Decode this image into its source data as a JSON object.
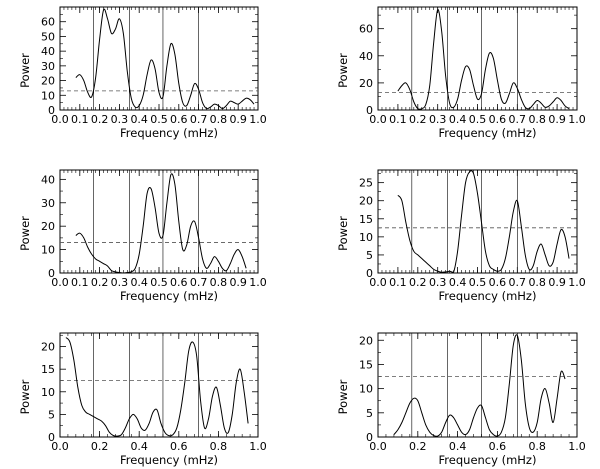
{
  "chart_data": [
    {
      "type": "line",
      "xlabel": "Frequency (mHz)",
      "ylabel": "Power",
      "xlim": [
        0.0,
        1.0
      ],
      "ylim": [
        0,
        70
      ],
      "xticks": [
        "0.0",
        "0.1",
        "0.2",
        "0.3",
        "0.4",
        "0.5",
        "0.6",
        "0.7",
        "0.8",
        "0.9",
        "1.0"
      ],
      "yticks": [
        "0",
        "10",
        "20",
        "30",
        "40",
        "50",
        "60"
      ],
      "ytick_values": [
        0,
        10,
        20,
        30,
        40,
        50,
        60
      ],
      "vertical_lines": [
        0.17,
        0.35,
        0.52,
        0.7
      ],
      "threshold": 13,
      "grid": false,
      "series": [
        {
          "x": [
            0.08,
            0.1,
            0.12,
            0.14,
            0.16,
            0.18,
            0.2,
            0.22,
            0.24,
            0.26,
            0.28,
            0.3,
            0.32,
            0.34,
            0.36,
            0.38,
            0.4,
            0.42,
            0.44,
            0.46,
            0.48,
            0.5,
            0.52,
            0.54,
            0.56,
            0.58,
            0.6,
            0.62,
            0.64,
            0.66,
            0.68,
            0.7,
            0.72,
            0.74,
            0.76,
            0.78,
            0.8,
            0.82,
            0.84,
            0.86,
            0.88,
            0.9,
            0.92,
            0.94,
            0.96,
            0.98
          ],
          "values": [
            22,
            24,
            20,
            12,
            9,
            22,
            48,
            68,
            62,
            52,
            55,
            62,
            52,
            26,
            8,
            2,
            3,
            10,
            24,
            34,
            28,
            12,
            9,
            30,
            45,
            38,
            18,
            5,
            3,
            10,
            18,
            14,
            5,
            1,
            2,
            4,
            3,
            1,
            3,
            6,
            5,
            4,
            6,
            8,
            7,
            4
          ]
        }
      ]
    },
    {
      "type": "line",
      "xlabel": "Frequency (mHz)",
      "ylabel": "Power",
      "xlim": [
        0.0,
        1.0
      ],
      "ylim": [
        0,
        76
      ],
      "xticks": [
        "0.0",
        "0.1",
        "0.2",
        "0.3",
        "0.4",
        "0.5",
        "0.6",
        "0.7",
        "0.8",
        "0.9",
        "1.0"
      ],
      "yticks": [
        "0",
        "20",
        "40",
        "60"
      ],
      "ytick_values": [
        0,
        20,
        40,
        60
      ],
      "vertical_lines": [
        0.17,
        0.35,
        0.52,
        0.7
      ],
      "threshold": 13,
      "grid": false,
      "series": [
        {
          "x": [
            0.1,
            0.12,
            0.14,
            0.16,
            0.18,
            0.2,
            0.22,
            0.24,
            0.26,
            0.28,
            0.3,
            0.32,
            0.34,
            0.36,
            0.38,
            0.4,
            0.42,
            0.44,
            0.46,
            0.48,
            0.5,
            0.52,
            0.54,
            0.56,
            0.58,
            0.6,
            0.62,
            0.64,
            0.66,
            0.68,
            0.7,
            0.72,
            0.74,
            0.76,
            0.78,
            0.8,
            0.82,
            0.84,
            0.86,
            0.88,
            0.9,
            0.92,
            0.94,
            0.96
          ],
          "values": [
            14,
            18,
            20,
            15,
            6,
            1,
            1,
            4,
            18,
            50,
            74,
            58,
            25,
            5,
            2,
            8,
            22,
            32,
            30,
            18,
            8,
            12,
            30,
            42,
            38,
            22,
            8,
            5,
            12,
            20,
            16,
            8,
            2,
            1,
            4,
            7,
            5,
            2,
            3,
            6,
            9,
            7,
            3,
            1
          ]
        }
      ]
    },
    {
      "type": "line",
      "xlabel": "Frequency (mHz)",
      "ylabel": "Power",
      "xlim": [
        0.0,
        1.0
      ],
      "ylim": [
        0,
        44
      ],
      "xticks": [
        "0.0",
        "0.1",
        "0.2",
        "0.3",
        "0.4",
        "0.5",
        "0.6",
        "0.7",
        "0.8",
        "0.9",
        "1.0"
      ],
      "yticks": [
        "0",
        "10",
        "20",
        "30",
        "40"
      ],
      "ytick_values": [
        0,
        10,
        20,
        30,
        40
      ],
      "vertical_lines": [
        0.17,
        0.35,
        0.52,
        0.7
      ],
      "threshold": 13,
      "grid": false,
      "series": [
        {
          "x": [
            0.08,
            0.1,
            0.12,
            0.14,
            0.16,
            0.18,
            0.2,
            0.22,
            0.24,
            0.26,
            0.28,
            0.3,
            0.32,
            0.34,
            0.36,
            0.38,
            0.4,
            0.42,
            0.44,
            0.46,
            0.48,
            0.5,
            0.52,
            0.54,
            0.56,
            0.58,
            0.6,
            0.62,
            0.64,
            0.66,
            0.68,
            0.7,
            0.72,
            0.74,
            0.76,
            0.78,
            0.8,
            0.82,
            0.84,
            0.86,
            0.88,
            0.9,
            0.92,
            0.94
          ],
          "values": [
            16,
            17,
            15,
            11,
            8,
            6,
            5,
            4,
            3,
            1,
            0.5,
            0.2,
            0,
            0.2,
            0.5,
            2,
            8,
            20,
            34,
            36,
            28,
            17,
            16,
            30,
            42,
            38,
            22,
            10,
            12,
            20,
            22,
            15,
            6,
            2,
            4,
            7,
            5,
            2,
            1,
            4,
            8,
            10,
            7,
            2
          ]
        }
      ]
    },
    {
      "type": "line",
      "xlabel": "Frequency (mHz)",
      "ylabel": "Power",
      "xlim": [
        0.0,
        1.0
      ],
      "ylim": [
        0,
        28.5
      ],
      "xticks": [
        "0.0",
        "0.1",
        "0.2",
        "0.3",
        "0.4",
        "0.5",
        "0.6",
        "0.7",
        "0.8",
        "0.9",
        "1.0"
      ],
      "yticks": [
        "0",
        "5",
        "10",
        "15",
        "20",
        "25"
      ],
      "ytick_values": [
        0,
        5,
        10,
        15,
        20,
        25
      ],
      "vertical_lines": [
        0.17,
        0.35,
        0.52,
        0.7
      ],
      "threshold": 12.5,
      "grid": false,
      "series": [
        {
          "x": [
            0.1,
            0.12,
            0.14,
            0.16,
            0.18,
            0.2,
            0.22,
            0.24,
            0.26,
            0.28,
            0.3,
            0.32,
            0.34,
            0.36,
            0.38,
            0.4,
            0.42,
            0.44,
            0.46,
            0.48,
            0.5,
            0.52,
            0.54,
            0.56,
            0.58,
            0.6,
            0.62,
            0.64,
            0.66,
            0.68,
            0.7,
            0.72,
            0.74,
            0.76,
            0.78,
            0.8,
            0.82,
            0.84,
            0.86,
            0.88,
            0.9,
            0.92,
            0.94,
            0.96
          ],
          "values": [
            21.5,
            20,
            14,
            9,
            6,
            5,
            4,
            3,
            2,
            1,
            0.5,
            0.2,
            0.3,
            0.5,
            0.3,
            6,
            16,
            25,
            28,
            27.5,
            22,
            14,
            6,
            2,
            1,
            0.5,
            1,
            4,
            10,
            17,
            20,
            13,
            5,
            1,
            2,
            6,
            8,
            5,
            2,
            3,
            8,
            12,
            10,
            4
          ]
        }
      ]
    },
    {
      "type": "line",
      "xlabel": "Frequency (mHz)",
      "ylabel": "Power",
      "xlim": [
        0.0,
        1.0
      ],
      "ylim": [
        0,
        23
      ],
      "xticks": [
        "0.0",
        "0.2",
        "0.4",
        "0.6",
        "0.8",
        "1.0"
      ],
      "yticks": [
        "0",
        "5",
        "10",
        "15",
        "20"
      ],
      "ytick_values": [
        0,
        5,
        10,
        15,
        20
      ],
      "vertical_lines": [
        0.17,
        0.35,
        0.52,
        0.7
      ],
      "threshold": 12.5,
      "grid": false,
      "series": [
        {
          "x": [
            0.03,
            0.05,
            0.07,
            0.09,
            0.11,
            0.13,
            0.15,
            0.17,
            0.19,
            0.21,
            0.23,
            0.25,
            0.27,
            0.29,
            0.31,
            0.33,
            0.35,
            0.37,
            0.39,
            0.41,
            0.43,
            0.45,
            0.47,
            0.49,
            0.51,
            0.53,
            0.55,
            0.57,
            0.59,
            0.61,
            0.63,
            0.65,
            0.67,
            0.69,
            0.71,
            0.73,
            0.75,
            0.77,
            0.79,
            0.81,
            0.83,
            0.85,
            0.87,
            0.89,
            0.91,
            0.93,
            0.95
          ],
          "values": [
            22,
            21,
            17,
            11,
            7,
            5.5,
            5,
            4.5,
            4,
            3.5,
            2.5,
            1,
            0.3,
            0.2,
            0.5,
            2,
            4,
            5,
            4,
            2,
            1.5,
            3,
            5.5,
            6,
            3,
            1,
            0.3,
            0.5,
            2,
            6,
            12,
            19,
            21,
            18,
            8,
            2,
            4,
            9,
            11,
            7,
            2,
            1,
            5,
            12,
            15,
            10,
            3
          ]
        }
      ]
    },
    {
      "type": "line",
      "xlabel": "Frequency (mHz)",
      "ylabel": "Power",
      "xlim": [
        0.0,
        1.0
      ],
      "ylim": [
        0,
        21.5
      ],
      "xticks": [
        "0.0",
        "0.2",
        "0.4",
        "0.6",
        "0.8",
        "1.0"
      ],
      "yticks": [
        "0",
        "5",
        "10",
        "15",
        "20"
      ],
      "ytick_values": [
        0,
        5,
        10,
        15,
        20
      ],
      "vertical_lines": [
        0.17,
        0.35,
        0.52,
        0.7
      ],
      "threshold": 12.5,
      "grid": false,
      "series": [
        {
          "x": [
            0.08,
            0.1,
            0.12,
            0.14,
            0.16,
            0.18,
            0.2,
            0.22,
            0.24,
            0.26,
            0.28,
            0.3,
            0.32,
            0.34,
            0.36,
            0.38,
            0.4,
            0.42,
            0.44,
            0.46,
            0.48,
            0.5,
            0.52,
            0.54,
            0.56,
            0.58,
            0.6,
            0.62,
            0.64,
            0.66,
            0.68,
            0.7,
            0.72,
            0.74,
            0.76,
            0.78,
            0.8,
            0.82,
            0.84,
            0.86,
            0.88,
            0.9,
            0.92,
            0.94
          ],
          "values": [
            0.5,
            1.5,
            3,
            5,
            7,
            8,
            7.5,
            5,
            2.5,
            1,
            0.3,
            0.2,
            1,
            3,
            4.5,
            4,
            2.5,
            1,
            0.5,
            1.5,
            4,
            6,
            6.5,
            4,
            1.5,
            0.5,
            0.2,
            1,
            4,
            11,
            19,
            21,
            16,
            7,
            2,
            1,
            3,
            8,
            10,
            7,
            3,
            8,
            13.5,
            12
          ]
        }
      ]
    }
  ]
}
